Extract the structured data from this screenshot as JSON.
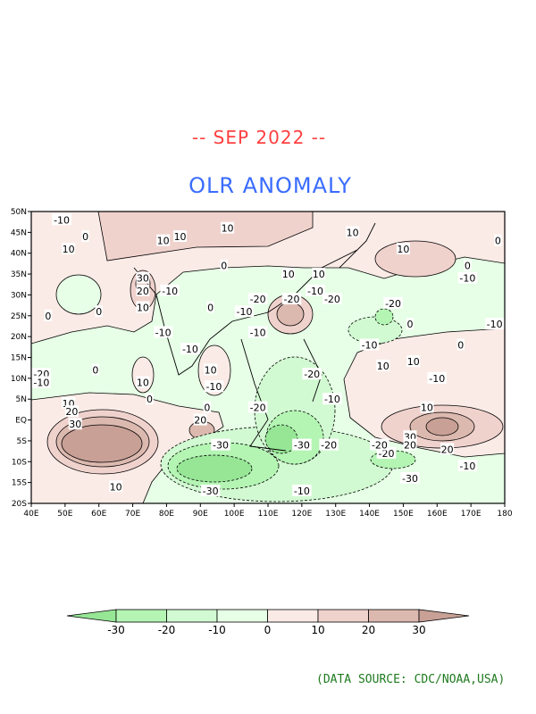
{
  "title": "-- SEP 2022 --",
  "subtitle": "OLR ANOMALY",
  "source": "(DATA SOURCE: CDC/NOAA,USA)",
  "map": {
    "lon_range": [
      40,
      180
    ],
    "lat_range": [
      -20,
      50
    ],
    "lat_ticks": [
      "50N",
      "45N",
      "40N",
      "35N",
      "30N",
      "25N",
      "20N",
      "15N",
      "10N",
      "5N",
      "EQ",
      "5S",
      "10S",
      "15S",
      "20S"
    ],
    "lon_ticks": [
      "40E",
      "50E",
      "60E",
      "70E",
      "80E",
      "90E",
      "100E",
      "110E",
      "120E",
      "130E",
      "140E",
      "150E",
      "160E",
      "170E",
      "180"
    ],
    "contour_labels": [
      {
        "t": "-10",
        "lon": 49,
        "lat": 48
      },
      {
        "t": "0",
        "lon": 56,
        "lat": 44
      },
      {
        "t": "10",
        "lon": 51,
        "lat": 41
      },
      {
        "t": "10",
        "lon": 79,
        "lat": 43
      },
      {
        "t": "10",
        "lon": 84,
        "lat": 44
      },
      {
        "t": "10",
        "lon": 98,
        "lat": 46
      },
      {
        "t": "0",
        "lon": 97,
        "lat": 37
      },
      {
        "t": "30",
        "lon": 73,
        "lat": 34
      },
      {
        "t": "20",
        "lon": 73,
        "lat": 31
      },
      {
        "t": "10",
        "lon": 73,
        "lat": 27
      },
      {
        "t": "-10",
        "lon": 81,
        "lat": 31
      },
      {
        "t": "0",
        "lon": 45,
        "lat": 25
      },
      {
        "t": "0",
        "lon": 60,
        "lat": 26
      },
      {
        "t": "-10",
        "lon": 79,
        "lat": 21
      },
      {
        "t": "-10",
        "lon": 87,
        "lat": 17
      },
      {
        "t": "0",
        "lon": 93,
        "lat": 27
      },
      {
        "t": "-10",
        "lon": 103,
        "lat": 26
      },
      {
        "t": "-20",
        "lon": 107,
        "lat": 29
      },
      {
        "t": "-10",
        "lon": 107,
        "lat": 21
      },
      {
        "t": "-20",
        "lon": 117,
        "lat": 29
      },
      {
        "t": "0",
        "lon": 59,
        "lat": 12
      },
      {
        "t": "-20",
        "lon": 43,
        "lat": 11
      },
      {
        "t": "-10",
        "lon": 43,
        "lat": 9
      },
      {
        "t": "10",
        "lon": 73,
        "lat": 9
      },
      {
        "t": "0",
        "lon": 75,
        "lat": 5
      },
      {
        "t": "-10",
        "lon": 94,
        "lat": 8
      },
      {
        "t": "10",
        "lon": 93,
        "lat": 12
      },
      {
        "t": "0",
        "lon": 92,
        "lat": 3
      },
      {
        "t": "20",
        "lon": 90,
        "lat": 0
      },
      {
        "t": "-20",
        "lon": 107,
        "lat": 3
      },
      {
        "t": "10",
        "lon": 51,
        "lat": 4
      },
      {
        "t": "20",
        "lon": 52,
        "lat": 2
      },
      {
        "t": "30",
        "lon": 53,
        "lat": -1
      },
      {
        "t": "-30",
        "lon": 96,
        "lat": -6
      },
      {
        "t": "-30",
        "lon": 93,
        "lat": -17
      },
      {
        "t": "10",
        "lon": 65,
        "lat": -16
      },
      {
        "t": "-20",
        "lon": 123,
        "lat": 11
      },
      {
        "t": "-20",
        "lon": 129,
        "lat": 29
      },
      {
        "t": "-10",
        "lon": 129,
        "lat": 5
      },
      {
        "t": "-10",
        "lon": 140,
        "lat": 18
      },
      {
        "t": "-20",
        "lon": 147,
        "lat": 28
      },
      {
        "t": "10",
        "lon": 144,
        "lat": 13
      },
      {
        "t": "10",
        "lon": 153,
        "lat": 14
      },
      {
        "t": "-10",
        "lon": 160,
        "lat": 10
      },
      {
        "t": "10",
        "lon": 157,
        "lat": 3
      },
      {
        "t": "-20",
        "lon": 145,
        "lat": -8
      },
      {
        "t": "-30",
        "lon": 152,
        "lat": -14
      },
      {
        "t": "30",
        "lon": 152,
        "lat": -4
      },
      {
        "t": "20",
        "lon": 152,
        "lat": -6
      },
      {
        "t": "20",
        "lon": 163,
        "lat": -7
      },
      {
        "t": "-10",
        "lon": 169,
        "lat": -11
      },
      {
        "t": "-30",
        "lon": 120,
        "lat": -6
      },
      {
        "t": "-20",
        "lon": 128,
        "lat": -6
      },
      {
        "t": "-20",
        "lon": 143,
        "lat": -6
      },
      {
        "t": "-10",
        "lon": 120,
        "lat": -17
      },
      {
        "t": "10",
        "lon": 135,
        "lat": 45
      },
      {
        "t": "10",
        "lon": 150,
        "lat": 41
      },
      {
        "t": "0",
        "lon": 169,
        "lat": 37
      },
      {
        "t": "-10",
        "lon": 169,
        "lat": 34
      },
      {
        "t": "-10",
        "lon": 177,
        "lat": 23
      },
      {
        "t": "0",
        "lon": 152,
        "lat": 23
      },
      {
        "t": "0",
        "lon": 167,
        "lat": 18
      },
      {
        "t": "0",
        "lon": 178,
        "lat": 43
      },
      {
        "t": "10",
        "lon": 116,
        "lat": 35
      },
      {
        "t": "10",
        "lon": 125,
        "lat": 35
      },
      {
        "t": "-10",
        "lon": 124,
        "lat": 31
      }
    ]
  },
  "colorbar": {
    "ticks": [
      "-30",
      "-20",
      "-10",
      "0",
      "10",
      "20",
      "30"
    ],
    "colors": [
      "#96e696",
      "#b4f5b4",
      "#d2fad2",
      "#e6ffe6",
      "#faebe6",
      "#f0d2cd",
      "#dcb9af",
      "#c8a096"
    ]
  }
}
